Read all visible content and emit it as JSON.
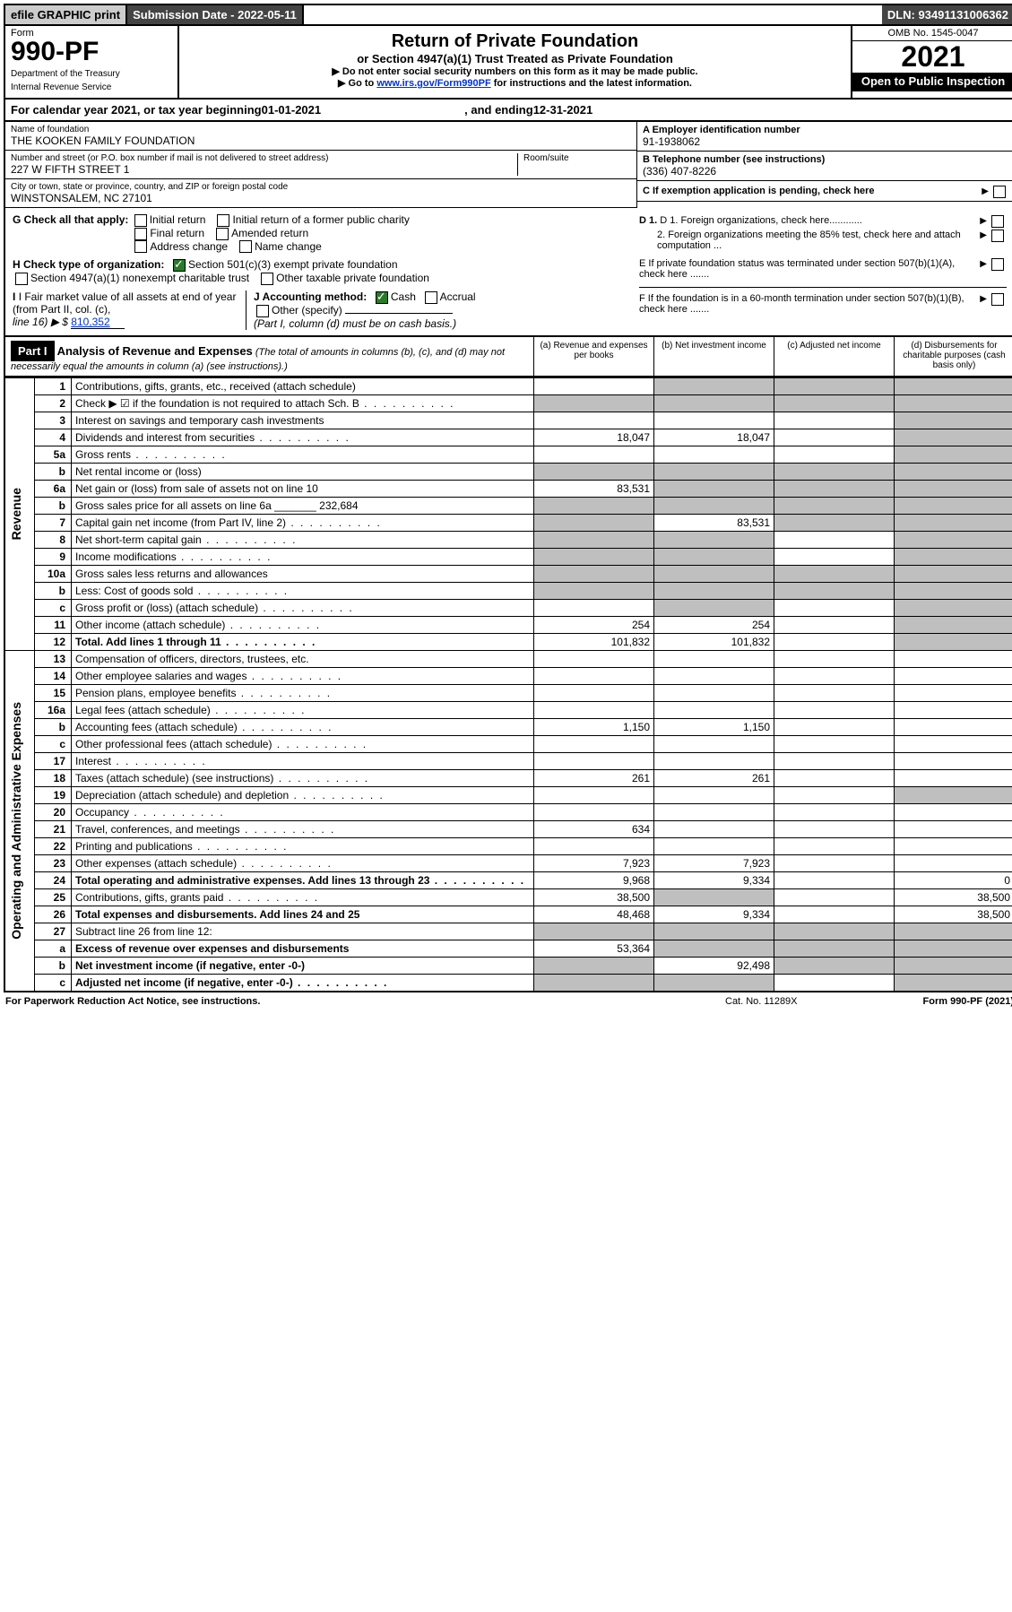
{
  "topbar": {
    "efile": "efile GRAPHIC print",
    "submission_label": "Submission Date - 2022-05-11",
    "dln": "DLN: 93491131006362"
  },
  "header": {
    "form_label": "Form",
    "form_number": "990-PF",
    "dept": "Department of the Treasury",
    "irs": "Internal Revenue Service",
    "title": "Return of Private Foundation",
    "subtitle": "or Section 4947(a)(1) Trust Treated as Private Foundation",
    "note1": "▶ Do not enter social security numbers on this form as it may be made public.",
    "note2_a": "▶ Go to ",
    "note2_link": "www.irs.gov/Form990PF",
    "note2_b": " for instructions and the latest information.",
    "omb": "OMB No. 1545-0047",
    "year": "2021",
    "open": "Open to Public Inspection"
  },
  "calendar": {
    "prefix": "For calendar year 2021, or tax year beginning ",
    "begin": "01-01-2021",
    "mid": ", and ending ",
    "end": "12-31-2021"
  },
  "org": {
    "name_label": "Name of foundation",
    "name": "THE KOOKEN FAMILY FOUNDATION",
    "street_label": "Number and street (or P.O. box number if mail is not delivered to street address)",
    "street": "227 W FIFTH STREET 1",
    "room_label": "Room/suite",
    "city_label": "City or town, state or province, country, and ZIP or foreign postal code",
    "city": "WINSTONSALEM, NC  27101",
    "ein_label": "A Employer identification number",
    "ein": "91-1938062",
    "phone_label": "B Telephone number (see instructions)",
    "phone": "(336) 407-8226",
    "c_label": "C If exemption application is pending, check here",
    "d1": "D 1. Foreign organizations, check here............",
    "d2": "2. Foreign organizations meeting the 85% test, check here and attach computation ...",
    "e": "E  If private foundation status was terminated under section 507(b)(1)(A), check here .......",
    "f": "F  If the foundation is in a 60-month termination under section 507(b)(1)(B), check here .......",
    "g_label": "G Check all that apply:",
    "g_opts": [
      "Initial return",
      "Initial return of a former public charity",
      "Final return",
      "Amended return",
      "Address change",
      "Name change"
    ],
    "h_label": "H Check type of organization:",
    "h_opt1": "Section 501(c)(3) exempt private foundation",
    "h_opt2": "Section 4947(a)(1) nonexempt charitable trust",
    "h_opt3": "Other taxable private foundation",
    "i_label": "I Fair market value of all assets at end of year (from Part II, col. (c),",
    "i_line": "line 16) ▶ $",
    "i_val": "810,352",
    "j_label": "J Accounting method:",
    "j_cash": "Cash",
    "j_accrual": "Accrual",
    "j_other": "Other (specify)",
    "j_note": "(Part I, column (d) must be on cash basis.)"
  },
  "part1": {
    "label": "Part I",
    "title": "Analysis of Revenue and Expenses",
    "note": "(The total of amounts in columns (b), (c), and (d) may not necessarily equal the amounts in column (a) (see instructions).)",
    "col_a": "(a)   Revenue and expenses per books",
    "col_b": "(b)   Net investment income",
    "col_c": "(c)   Adjusted net income",
    "col_d": "(d)   Disbursements for charitable purposes (cash basis only)"
  },
  "sections": {
    "revenue": "Revenue",
    "expenses": "Operating and Administrative Expenses"
  },
  "rows": [
    {
      "n": "1",
      "d": "Contributions, gifts, grants, etc., received (attach schedule)",
      "a": "",
      "b": "",
      "c": "",
      "dd": "",
      "sa": false,
      "sb": true,
      "sc": true,
      "sd": true
    },
    {
      "n": "2",
      "d": "Check ▶ ☑ if the foundation is not required to attach Sch. B",
      "a": "",
      "b": "",
      "c": "",
      "dd": "",
      "sa": true,
      "sb": true,
      "sc": true,
      "sd": true,
      "bold": false,
      "dots": true
    },
    {
      "n": "3",
      "d": "Interest on savings and temporary cash investments",
      "a": "",
      "b": "",
      "c": "",
      "dd": "",
      "sa": false,
      "sb": false,
      "sc": false,
      "sd": true
    },
    {
      "n": "4",
      "d": "Dividends and interest from securities",
      "a": "18,047",
      "b": "18,047",
      "c": "",
      "dd": "",
      "sa": false,
      "sb": false,
      "sc": false,
      "sd": true,
      "dots": true
    },
    {
      "n": "5a",
      "d": "Gross rents",
      "a": "",
      "b": "",
      "c": "",
      "dd": "",
      "sa": false,
      "sb": false,
      "sc": false,
      "sd": true,
      "dots": true
    },
    {
      "n": "b",
      "d": "Net rental income or (loss)",
      "a": "",
      "b": "",
      "c": "",
      "dd": "",
      "sa": true,
      "sb": true,
      "sc": true,
      "sd": true
    },
    {
      "n": "6a",
      "d": "Net gain or (loss) from sale of assets not on line 10",
      "a": "83,531",
      "b": "",
      "c": "",
      "dd": "",
      "sa": false,
      "sb": true,
      "sc": true,
      "sd": true
    },
    {
      "n": "b",
      "d": "Gross sales price for all assets on line 6a _______ 232,684",
      "a": "",
      "b": "",
      "c": "",
      "dd": "",
      "sa": true,
      "sb": true,
      "sc": true,
      "sd": true
    },
    {
      "n": "7",
      "d": "Capital gain net income (from Part IV, line 2)",
      "a": "",
      "b": "83,531",
      "c": "",
      "dd": "",
      "sa": true,
      "sb": false,
      "sc": true,
      "sd": true,
      "dots": true
    },
    {
      "n": "8",
      "d": "Net short-term capital gain",
      "a": "",
      "b": "",
      "c": "",
      "dd": "",
      "sa": true,
      "sb": true,
      "sc": false,
      "sd": true,
      "dots": true
    },
    {
      "n": "9",
      "d": "Income modifications",
      "a": "",
      "b": "",
      "c": "",
      "dd": "",
      "sa": true,
      "sb": true,
      "sc": false,
      "sd": true,
      "dots": true
    },
    {
      "n": "10a",
      "d": "Gross sales less returns and allowances",
      "a": "",
      "b": "",
      "c": "",
      "dd": "",
      "sa": true,
      "sb": true,
      "sc": true,
      "sd": true
    },
    {
      "n": "b",
      "d": "Less: Cost of goods sold",
      "a": "",
      "b": "",
      "c": "",
      "dd": "",
      "sa": true,
      "sb": true,
      "sc": true,
      "sd": true,
      "dots": true
    },
    {
      "n": "c",
      "d": "Gross profit or (loss) (attach schedule)",
      "a": "",
      "b": "",
      "c": "",
      "dd": "",
      "sa": false,
      "sb": true,
      "sc": false,
      "sd": true,
      "dots": true
    },
    {
      "n": "11",
      "d": "Other income (attach schedule)",
      "a": "254",
      "b": "254",
      "c": "",
      "dd": "",
      "sa": false,
      "sb": false,
      "sc": false,
      "sd": true,
      "dots": true
    },
    {
      "n": "12",
      "d": "Total. Add lines 1 through 11",
      "a": "101,832",
      "b": "101,832",
      "c": "",
      "dd": "",
      "sa": false,
      "sb": false,
      "sc": false,
      "sd": true,
      "bold": true,
      "dots": true
    }
  ],
  "exp_rows": [
    {
      "n": "13",
      "d": "Compensation of officers, directors, trustees, etc.",
      "a": "",
      "b": "",
      "c": "",
      "dd": ""
    },
    {
      "n": "14",
      "d": "Other employee salaries and wages",
      "a": "",
      "b": "",
      "c": "",
      "dd": "",
      "dots": true
    },
    {
      "n": "15",
      "d": "Pension plans, employee benefits",
      "a": "",
      "b": "",
      "c": "",
      "dd": "",
      "dots": true
    },
    {
      "n": "16a",
      "d": "Legal fees (attach schedule)",
      "a": "",
      "b": "",
      "c": "",
      "dd": "",
      "dots": true
    },
    {
      "n": "b",
      "d": "Accounting fees (attach schedule)",
      "a": "1,150",
      "b": "1,150",
      "c": "",
      "dd": "",
      "dots": true
    },
    {
      "n": "c",
      "d": "Other professional fees (attach schedule)",
      "a": "",
      "b": "",
      "c": "",
      "dd": "",
      "dots": true
    },
    {
      "n": "17",
      "d": "Interest",
      "a": "",
      "b": "",
      "c": "",
      "dd": "",
      "dots": true
    },
    {
      "n": "18",
      "d": "Taxes (attach schedule) (see instructions)",
      "a": "261",
      "b": "261",
      "c": "",
      "dd": "",
      "dots": true
    },
    {
      "n": "19",
      "d": "Depreciation (attach schedule) and depletion",
      "a": "",
      "b": "",
      "c": "",
      "dd": "",
      "sd": true,
      "dots": true
    },
    {
      "n": "20",
      "d": "Occupancy",
      "a": "",
      "b": "",
      "c": "",
      "dd": "",
      "dots": true
    },
    {
      "n": "21",
      "d": "Travel, conferences, and meetings",
      "a": "634",
      "b": "",
      "c": "",
      "dd": "",
      "dots": true
    },
    {
      "n": "22",
      "d": "Printing and publications",
      "a": "",
      "b": "",
      "c": "",
      "dd": "",
      "dots": true
    },
    {
      "n": "23",
      "d": "Other expenses (attach schedule)",
      "a": "7,923",
      "b": "7,923",
      "c": "",
      "dd": "",
      "dots": true
    },
    {
      "n": "24",
      "d": "Total operating and administrative expenses. Add lines 13 through 23",
      "a": "9,968",
      "b": "9,334",
      "c": "",
      "dd": "0",
      "bold": true,
      "dots": true
    },
    {
      "n": "25",
      "d": "Contributions, gifts, grants paid",
      "a": "38,500",
      "b": "",
      "c": "",
      "dd": "38,500",
      "sb": true,
      "dots": true
    },
    {
      "n": "26",
      "d": "Total expenses and disbursements. Add lines 24 and 25",
      "a": "48,468",
      "b": "9,334",
      "c": "",
      "dd": "38,500",
      "bold": true
    },
    {
      "n": "27",
      "d": "Subtract line 26 from line 12:",
      "a": "",
      "b": "",
      "c": "",
      "dd": "",
      "sa": true,
      "sb": true,
      "sc": true,
      "sd": true
    },
    {
      "n": "a",
      "d": "Excess of revenue over expenses and disbursements",
      "a": "53,364",
      "b": "",
      "c": "",
      "dd": "",
      "bold": true,
      "sb": true,
      "sc": true,
      "sd": true
    },
    {
      "n": "b",
      "d": "Net investment income (if negative, enter -0-)",
      "a": "",
      "b": "92,498",
      "c": "",
      "dd": "",
      "bold": true,
      "sa": true,
      "sc": true,
      "sd": true
    },
    {
      "n": "c",
      "d": "Adjusted net income (if negative, enter -0-)",
      "a": "",
      "b": "",
      "c": "",
      "dd": "",
      "bold": true,
      "sa": true,
      "sb": true,
      "sd": true,
      "dots": true
    }
  ],
  "footer": {
    "left": "For Paperwork Reduction Act Notice, see instructions.",
    "cat": "Cat. No. 11289X",
    "right": "Form 990-PF (2021)"
  }
}
